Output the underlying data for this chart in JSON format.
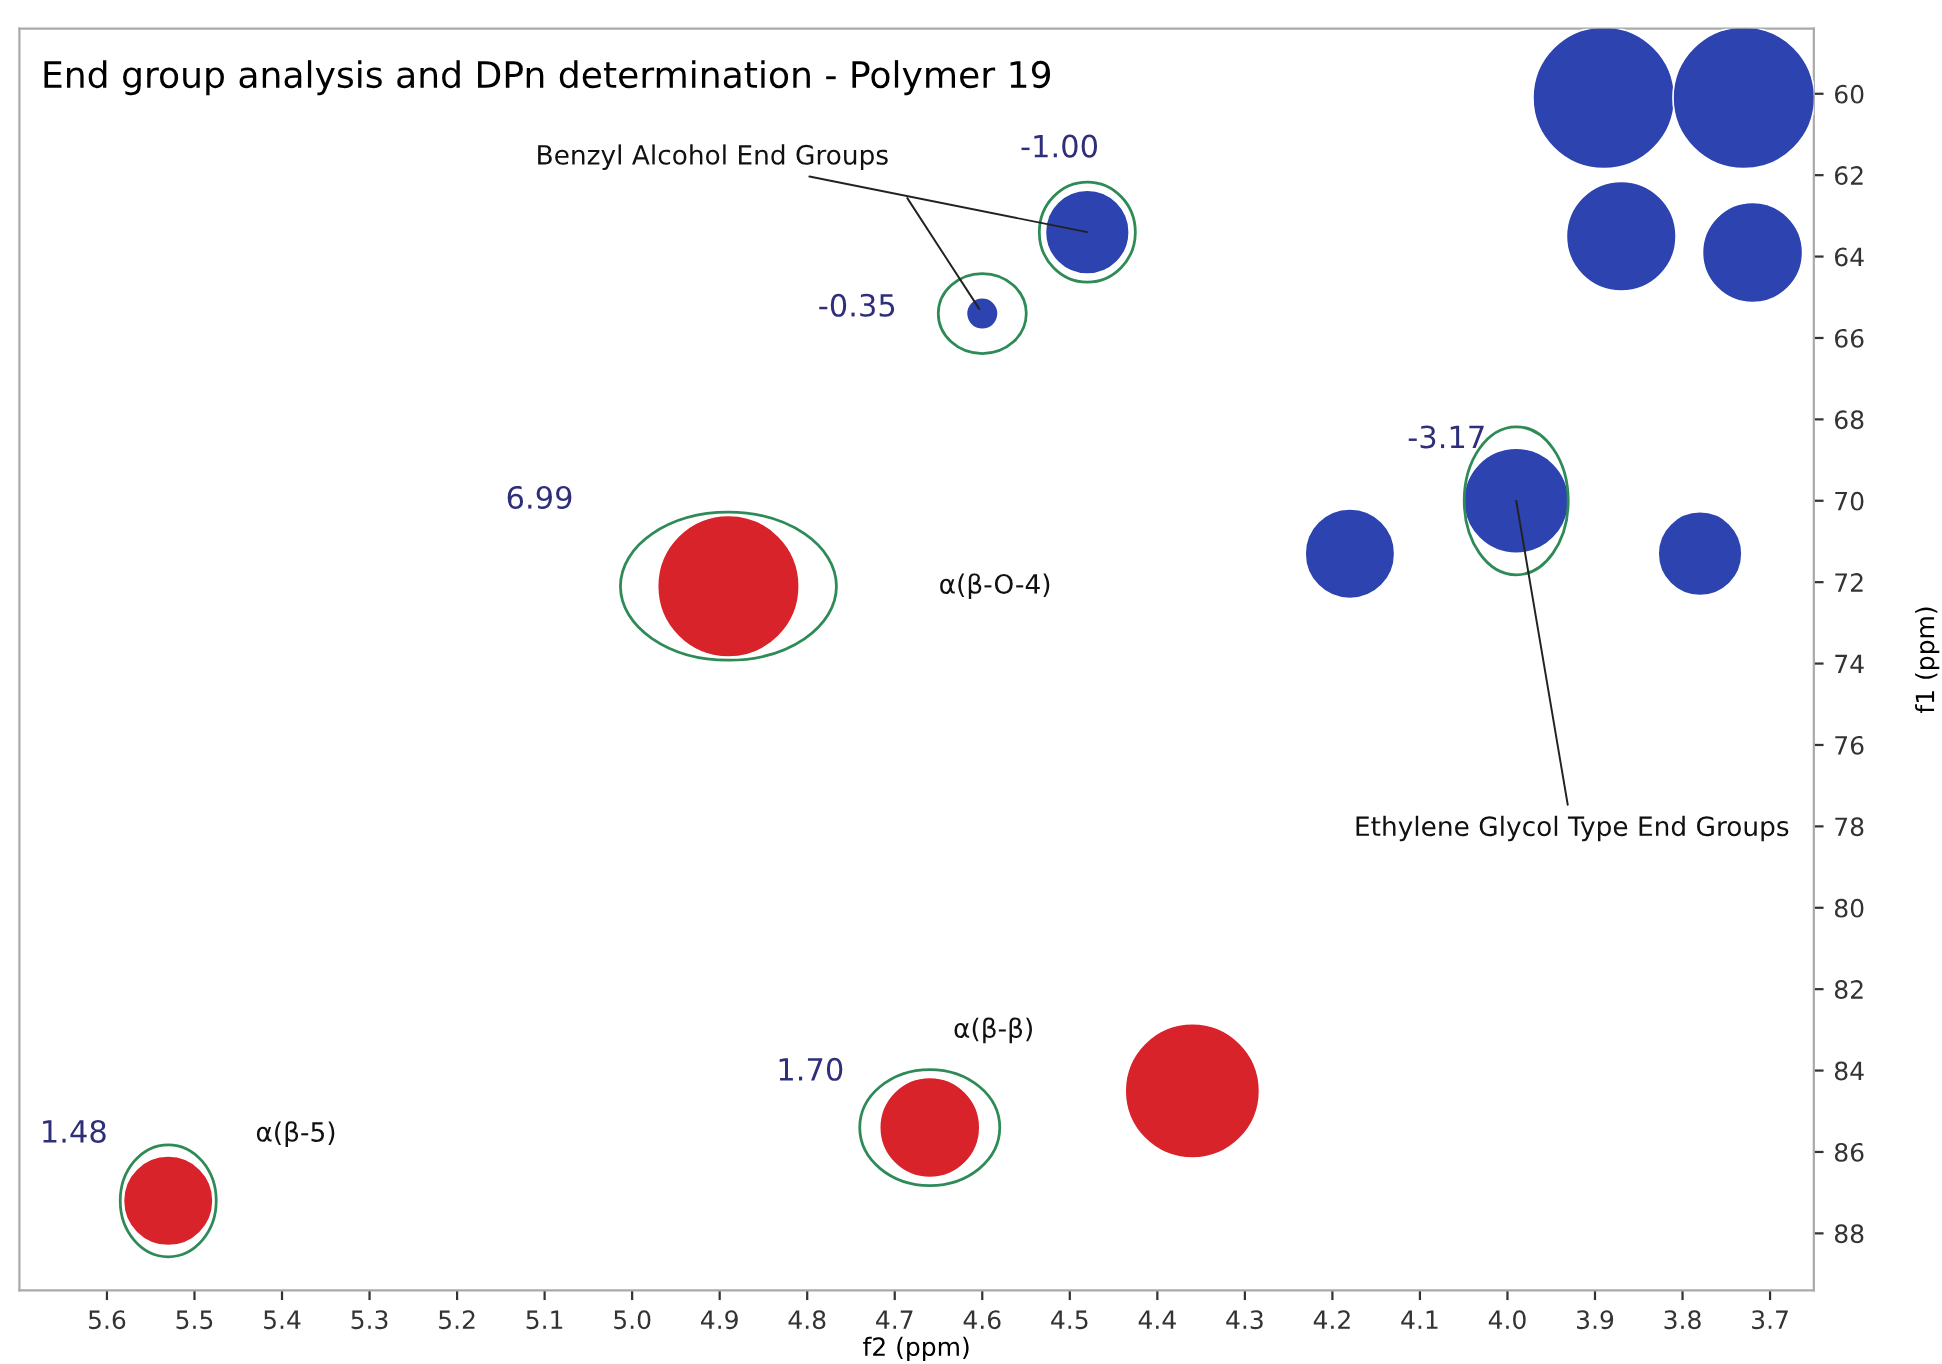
{
  "chart_data": {
    "type": "bubble",
    "title": "End group analysis and DPn determination - Polymer 19",
    "xlabel": "f2 (ppm)",
    "ylabel": "f1 (ppm)",
    "series": [
      {
        "color": "#d9232b",
        "x": [
          4.89,
          4.36,
          4.66,
          5.53
        ],
        "values": [
          72.1,
          84.5,
          85.4,
          87.2
        ],
        "sizes": [
          1.0,
          0.9,
          0.5,
          0.4
        ]
      },
      {
        "color": "#2c43b0",
        "x": [
          3.89,
          3.73,
          3.87,
          3.72,
          4.48,
          4.6,
          4.18,
          3.99,
          3.78
        ],
        "values": [
          60.1,
          60.1,
          63.5,
          63.9,
          63.4,
          65.4,
          71.3,
          70.0,
          71.3
        ],
        "sizes": [
          1.0,
          1.0,
          0.6,
          0.5,
          0.35,
          0.05,
          0.4,
          0.55,
          0.35
        ]
      }
    ],
    "annotations": [
      {
        "text": "-1.00",
        "x": 4.48,
        "y": 63.4
      },
      {
        "text": "-0.35",
        "x": 4.6,
        "y": 65.4
      },
      {
        "text": "Benzyl Alcohol End Groups",
        "x": 4.48,
        "y": 63.4
      },
      {
        "text": "-3.17",
        "x": 3.99,
        "y": 70.0
      },
      {
        "text": "Ethylene Glycol Type End Groups",
        "x": 3.99,
        "y": 70.0
      },
      "6.99",
      "α(β-O-4)",
      "1.70",
      "α(β-β)",
      {
        "text": "1.48",
        "x": 5.53,
        "y": 87.2
      },
      "α(β-5)"
    ],
    "xlim": [
      5.7,
      3.65
    ],
    "ylim": [
      89.4,
      58.4
    ],
    "xticks": [
      5.6,
      5.5,
      5.4,
      5.3,
      5.2,
      5.1,
      {
        "value": 5,
        "label": "5.0"
      },
      4.9,
      4.8,
      4.7,
      4.6,
      4.5,
      4.4,
      4.3,
      4.2,
      4.1,
      {
        "value": 4,
        "label": "4.0"
      },
      3.9,
      3.8,
      3.7
    ],
    "yticks": [
      60,
      62,
      64,
      66,
      68,
      70,
      72,
      74,
      76,
      78,
      80,
      82,
      84,
      86,
      88
    ],
    "grid": false,
    "legend": false
  }
}
